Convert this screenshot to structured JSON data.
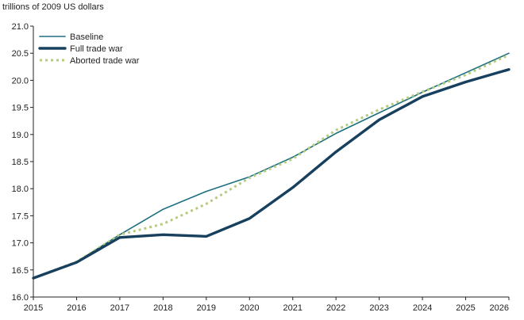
{
  "chart_data": {
    "type": "line",
    "title": "",
    "ylabel": "trillions of 2009 US dollars",
    "xlabel": "",
    "x": [
      2015,
      2016,
      2017,
      2018,
      2019,
      2020,
      2021,
      2022,
      2023,
      2024,
      2025,
      2026
    ],
    "x_tick_labels": [
      "2015",
      "2016",
      "2017",
      "2018",
      "2019",
      "2020",
      "2021",
      "2022",
      "2023",
      "2024",
      "2025",
      "2026"
    ],
    "ylim": [
      16.0,
      21.0
    ],
    "y_ticks": [
      16.0,
      16.5,
      17.0,
      17.5,
      18.0,
      18.5,
      19.0,
      19.5,
      20.0,
      20.5,
      21.0
    ],
    "y_tick_labels": [
      "16.0",
      "16.5",
      "17.0",
      "17.5",
      "18.0",
      "18.5",
      "19.0",
      "19.5",
      "20.0",
      "20.5",
      "21.0"
    ],
    "grid": false,
    "legend_position": "top-left",
    "series": [
      {
        "name": "Baseline",
        "color": "#1c7080",
        "style": "solid-thin",
        "values": [
          16.35,
          16.65,
          17.15,
          17.62,
          17.95,
          18.22,
          18.58,
          19.02,
          19.4,
          19.78,
          20.14,
          20.5
        ]
      },
      {
        "name": "Full trade war",
        "color": "#17405e",
        "style": "solid-thick",
        "values": [
          16.35,
          16.64,
          17.1,
          17.15,
          17.12,
          17.45,
          18.02,
          18.68,
          19.27,
          19.7,
          19.97,
          20.2
        ]
      },
      {
        "name": "Aborted trade war",
        "color": "#b5cb80",
        "style": "dotted",
        "values": [
          16.35,
          16.65,
          17.15,
          17.35,
          17.72,
          18.2,
          18.55,
          19.08,
          19.46,
          19.79,
          20.1,
          20.47
        ]
      }
    ]
  }
}
